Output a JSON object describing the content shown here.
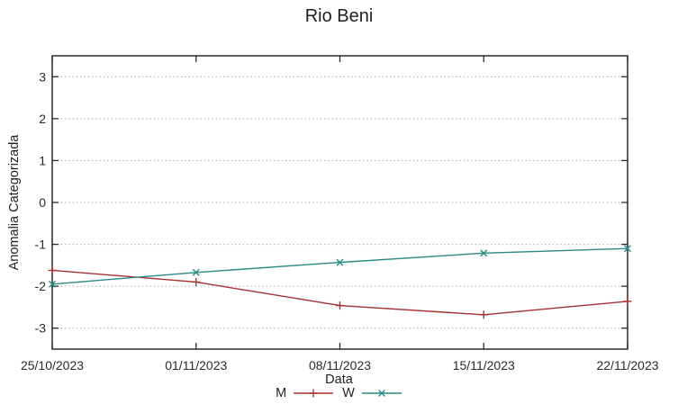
{
  "chart_data": {
    "type": "line",
    "title": "Rio Beni",
    "xlabel": "Data",
    "ylabel": "Anomalia Categorizada",
    "x": [
      "25/10/2023",
      "01/11/2023",
      "08/11/2023",
      "15/11/2023",
      "22/11/2023"
    ],
    "y_ticks": [
      3,
      2,
      1,
      0,
      -1,
      -2,
      -3
    ],
    "ylim": [
      -3.5,
      3.5
    ],
    "grid": "horizontal-dotted",
    "legend_position": "below-center",
    "series": [
      {
        "name": "M",
        "color": "#a53232",
        "marker": "plus",
        "values": [
          -1.62,
          -1.9,
          -2.46,
          -2.68,
          -2.36
        ]
      },
      {
        "name": "W",
        "color": "#2b8a84",
        "marker": "cross",
        "values": [
          -1.95,
          -1.67,
          -1.43,
          -1.21,
          -1.1
        ]
      }
    ],
    "colors": {
      "axis": "#2a2a2a",
      "grid": "#a8a8a8",
      "text": "#2a2a2a",
      "background": "#ffffff"
    }
  }
}
